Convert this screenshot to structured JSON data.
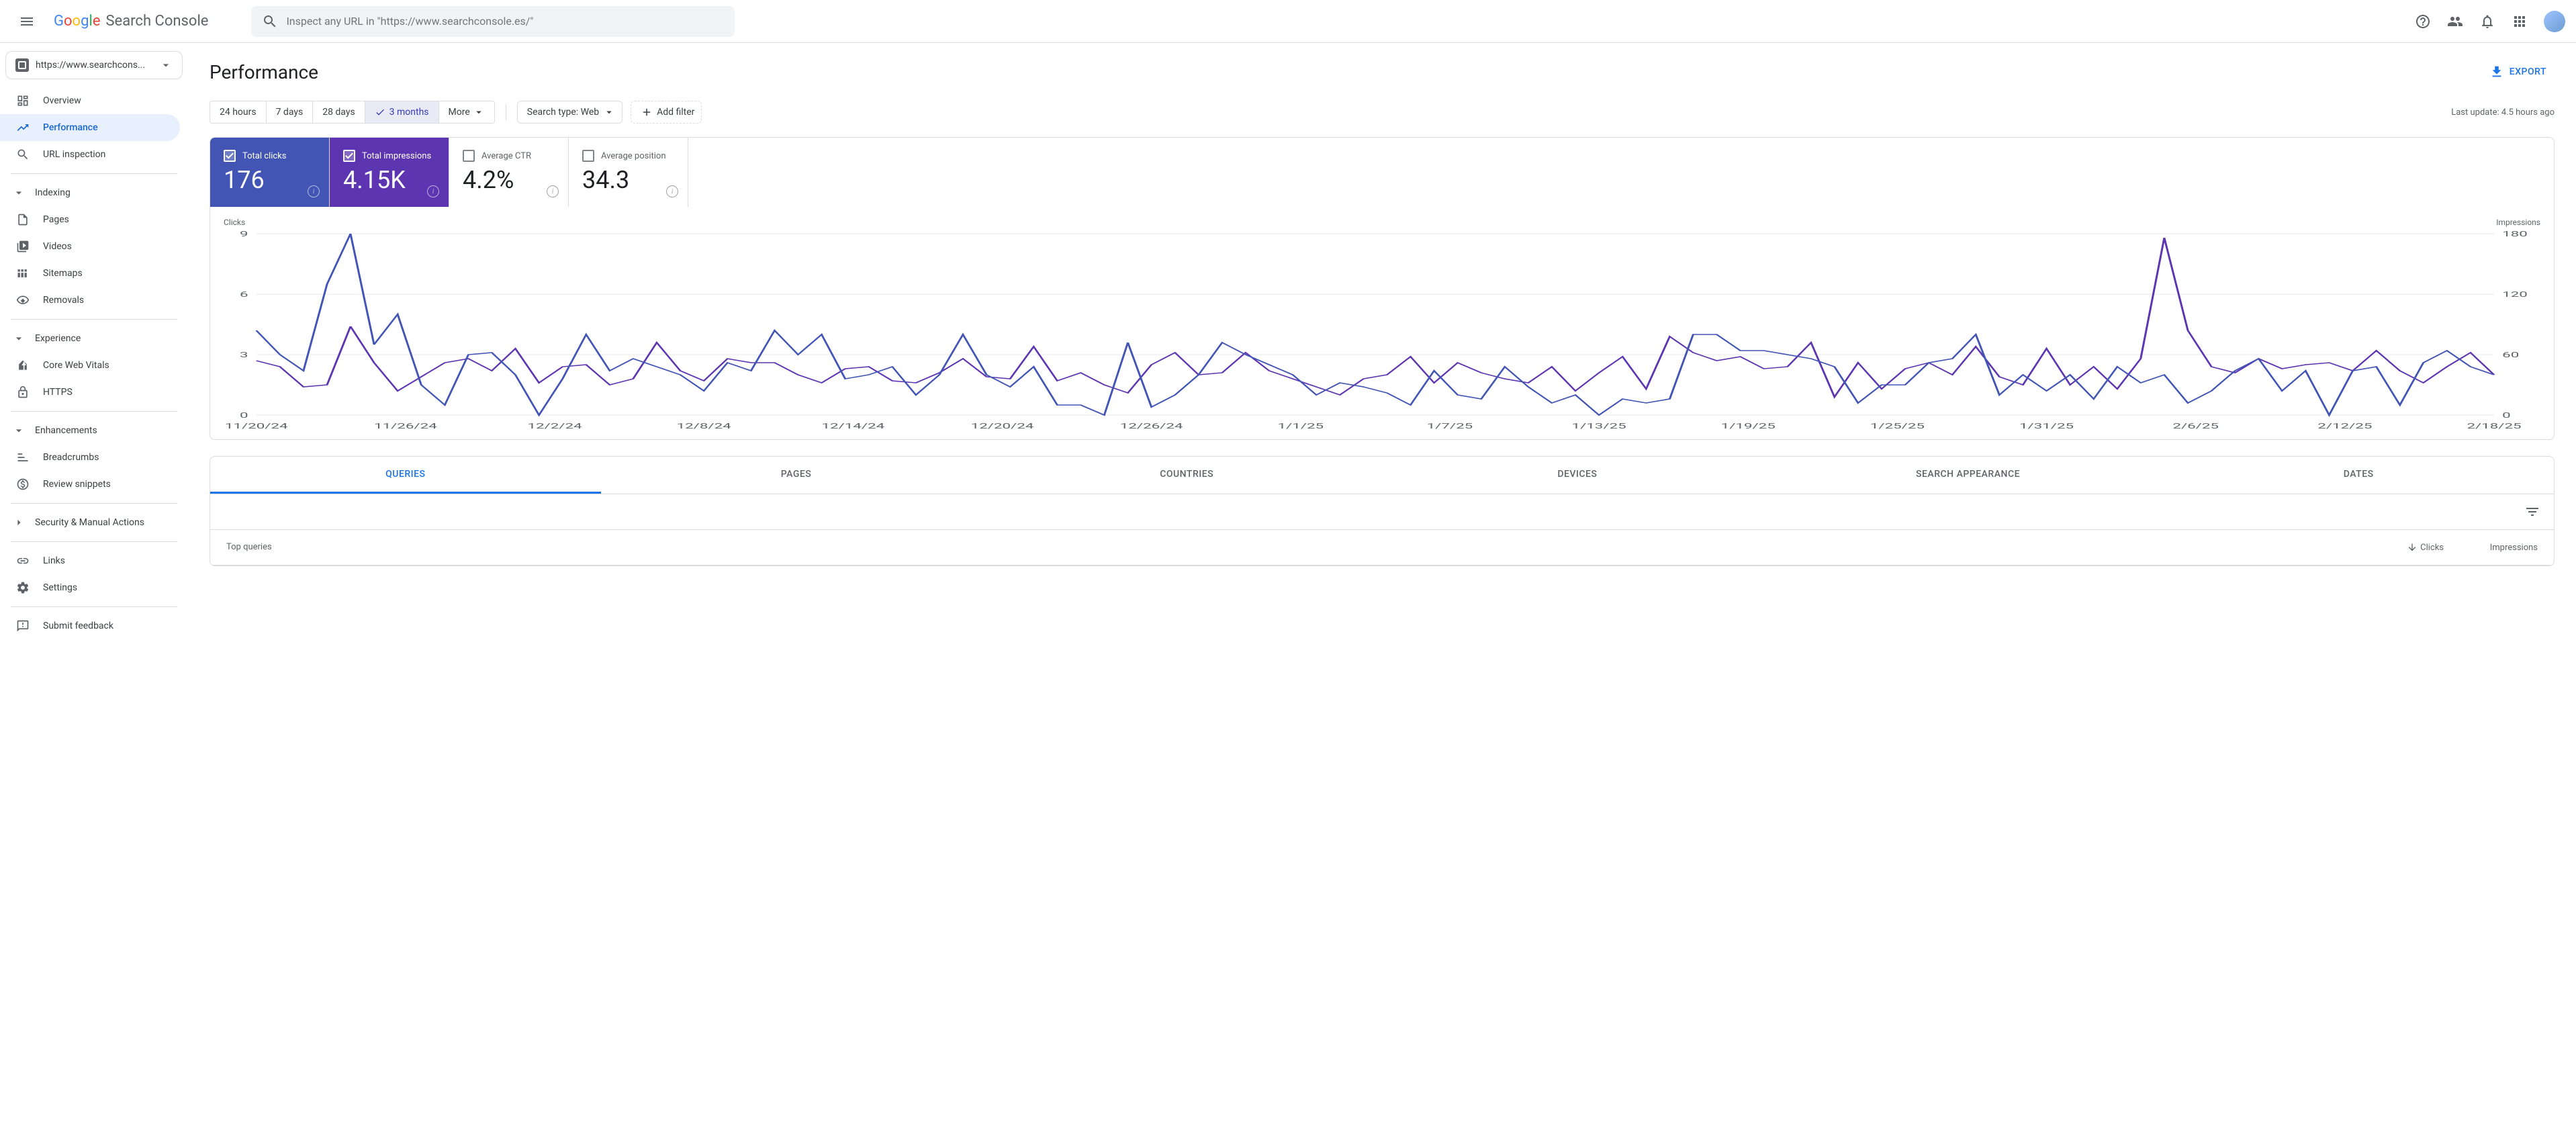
{
  "header": {
    "product_name": "Search Console",
    "search_placeholder": "Inspect any URL in \"https://www.searchconsole.es/\""
  },
  "property_selector": {
    "url": "https://www.searchcons..."
  },
  "sidebar": {
    "overview": "Overview",
    "performance": "Performance",
    "url_inspection": "URL inspection",
    "indexing": "Indexing",
    "pages": "Pages",
    "videos": "Videos",
    "sitemaps": "Sitemaps",
    "removals": "Removals",
    "experience": "Experience",
    "core_web_vitals": "Core Web Vitals",
    "https": "HTTPS",
    "enhancements": "Enhancements",
    "breadcrumbs": "Breadcrumbs",
    "review_snippets": "Review snippets",
    "security": "Security & Manual Actions",
    "links": "Links",
    "settings": "Settings",
    "submit_feedback": "Submit feedback"
  },
  "page": {
    "title": "Performance",
    "export": "EXPORT",
    "last_update": "Last update: 4.5 hours ago"
  },
  "date_filters": {
    "h24": "24 hours",
    "d7": "7 days",
    "d28": "28 days",
    "m3": "3 months",
    "more": "More"
  },
  "filters": {
    "search_type": "Search type: Web",
    "add_filter": "Add filter"
  },
  "metrics": {
    "clicks": {
      "label": "Total clicks",
      "value": "176",
      "checked": true
    },
    "impressions": {
      "label": "Total impressions",
      "value": "4.15K",
      "checked": true
    },
    "ctr": {
      "label": "Average CTR",
      "value": "4.2%",
      "checked": false
    },
    "position": {
      "label": "Average position",
      "value": "34.3",
      "checked": false
    }
  },
  "chart": {
    "left_label": "Clicks",
    "right_label": "Impressions",
    "y_left": {
      "min": 0,
      "max": 9,
      "ticks": [
        0,
        3,
        6,
        9
      ]
    },
    "y_right": {
      "min": 0,
      "max": 180,
      "ticks": [
        0,
        60,
        120,
        180
      ]
    },
    "x_labels": [
      "11/20/24",
      "11/26/24",
      "12/2/24",
      "12/8/24",
      "12/14/24",
      "12/20/24",
      "12/26/24",
      "1/1/25",
      "1/7/25",
      "1/13/25",
      "1/19/25",
      "1/25/25",
      "1/31/25",
      "2/6/25",
      "2/12/25",
      "2/18/25"
    ],
    "colors": {
      "clicks": "#4255b5",
      "impressions": "#5e35b1",
      "grid": "#e8eaed",
      "axis_text": "#5f6368"
    },
    "series_clicks": [
      4.2,
      3.0,
      2.2,
      6.5,
      9.0,
      3.5,
      5.0,
      1.5,
      0.5,
      3.0,
      3.1,
      2.0,
      0.0,
      1.8,
      4.0,
      2.2,
      2.8,
      2.4,
      2.0,
      1.2,
      2.6,
      2.2,
      4.2,
      3.0,
      4.0,
      1.8,
      2.0,
      2.4,
      1.0,
      2.0,
      4.0,
      2.0,
      1.4,
      2.4,
      0.5,
      0.5,
      0.0,
      3.6,
      0.4,
      1.0,
      2.0,
      3.6,
      3.0,
      2.5,
      2.0,
      1.0,
      1.6,
      1.4,
      1.1,
      0.5,
      2.2,
      1.0,
      0.8,
      2.4,
      1.4,
      0.6,
      1.0,
      0.0,
      0.8,
      0.6,
      0.8,
      4.0,
      4.0,
      3.2,
      3.2,
      3.0,
      2.8,
      2.4,
      0.6,
      1.5,
      1.5,
      2.6,
      2.8,
      4.0,
      1.0,
      2.0,
      1.2,
      2.0,
      0.8,
      2.4,
      1.6,
      2.0,
      0.6,
      1.2,
      2.2,
      2.8,
      1.2,
      2.2,
      0.0,
      2.2,
      2.4,
      0.5,
      2.6,
      3.2,
      2.4,
      2.0
    ],
    "series_impressions": [
      54,
      48,
      28,
      30,
      88,
      52,
      24,
      38,
      52,
      56,
      44,
      66,
      32,
      48,
      50,
      30,
      36,
      72,
      44,
      34,
      56,
      52,
      52,
      40,
      32,
      46,
      48,
      34,
      32,
      42,
      56,
      38,
      36,
      68,
      34,
      42,
      30,
      22,
      50,
      62,
      40,
      42,
      62,
      44,
      36,
      28,
      20,
      36,
      40,
      58,
      32,
      52,
      42,
      36,
      32,
      48,
      24,
      42,
      58,
      26,
      78,
      62,
      54,
      58,
      46,
      48,
      72,
      18,
      52,
      26,
      46,
      52,
      40,
      68,
      38,
      30,
      66,
      30,
      48,
      26,
      56,
      176,
      84,
      48,
      42,
      56,
      46,
      50,
      52,
      44,
      64,
      44,
      32,
      48,
      62,
      40
    ]
  },
  "tabs": {
    "queries": "QUERIES",
    "pages": "PAGES",
    "countries": "COUNTRIES",
    "devices": "DEVICES",
    "search_appearance": "SEARCH APPEARANCE",
    "dates": "DATES"
  },
  "table": {
    "col_query": "Top queries",
    "col_clicks": "Clicks",
    "col_impressions": "Impressions"
  }
}
